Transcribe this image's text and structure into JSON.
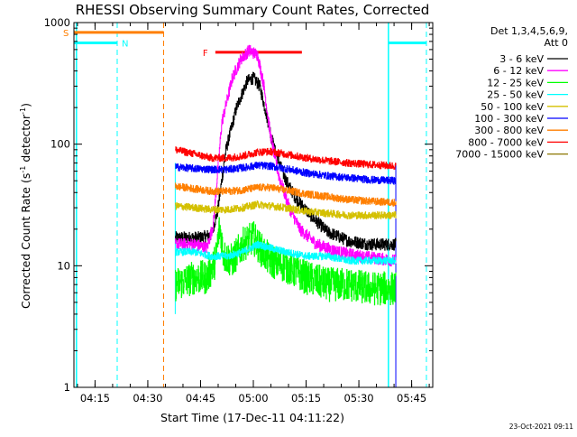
{
  "chart_data": {
    "type": "line",
    "title": "RHESSI Observing Summary Count Rates, Corrected",
    "xlabel": "Start Time (17-Dec-11 04:11:22)",
    "ylabel": "Corrected Count Rate (s",
    "ylabel_sup1": "-1",
    "ylabel_mid": " detector",
    "ylabel_sup2": "-1",
    "ylabel_end": ")",
    "yscale": "log",
    "ylim": [
      1,
      1000
    ],
    "xlim": [
      4.15,
      5.85
    ],
    "x_unit": "hours (UT) on 17-Dec-11",
    "x_ticks": [
      {
        "x": 4.25,
        "label": "04:15"
      },
      {
        "x": 4.5,
        "label": "04:30"
      },
      {
        "x": 4.75,
        "label": "04:45"
      },
      {
        "x": 5.0,
        "label": "05:00"
      },
      {
        "x": 5.25,
        "label": "05:15"
      },
      {
        "x": 5.5,
        "label": "05:30"
      },
      {
        "x": 5.75,
        "label": "05:45"
      }
    ],
    "y_ticks": [
      {
        "y": 1,
        "label": "1"
      },
      {
        "y": 10,
        "label": "10"
      },
      {
        "y": 100,
        "label": "100"
      },
      {
        "y": 1000,
        "label": "1000"
      }
    ],
    "legend_position": "top-right",
    "legend_header": [
      "Det 1,3,4,5,6,9,",
      "Att 0"
    ],
    "data_start": 4.63,
    "data_end": 5.675,
    "series": [
      {
        "name": "3 - 6 keV",
        "color": "#000000",
        "points": [
          [
            4.63,
            17
          ],
          [
            4.75,
            17
          ],
          [
            4.8,
            18
          ],
          [
            4.83,
            28
          ],
          [
            4.87,
            90
          ],
          [
            4.92,
            200
          ],
          [
            4.97,
            330
          ],
          [
            5.0,
            350
          ],
          [
            5.03,
            300
          ],
          [
            5.06,
            180
          ],
          [
            5.1,
            90
          ],
          [
            5.15,
            52
          ],
          [
            5.2,
            36
          ],
          [
            5.28,
            25
          ],
          [
            5.35,
            19
          ],
          [
            5.45,
            16
          ],
          [
            5.55,
            15
          ],
          [
            5.675,
            15
          ]
        ]
      },
      {
        "name": "6 - 12 keV",
        "color": "#ff00ff",
        "points": [
          [
            4.63,
            15
          ],
          [
            4.72,
            15
          ],
          [
            4.78,
            14
          ],
          [
            4.81,
            22
          ],
          [
            4.85,
            150
          ],
          [
            4.9,
            350
          ],
          [
            4.94,
            500
          ],
          [
            4.98,
            590
          ],
          [
            5.02,
            540
          ],
          [
            5.05,
            300
          ],
          [
            5.08,
            120
          ],
          [
            5.12,
            55
          ],
          [
            5.17,
            30
          ],
          [
            5.22,
            20
          ],
          [
            5.3,
            15
          ],
          [
            5.4,
            13
          ],
          [
            5.5,
            12
          ],
          [
            5.675,
            11
          ]
        ]
      },
      {
        "name": "12 - 25 keV",
        "color": "#00ff00",
        "points": [
          [
            4.63,
            7
          ],
          [
            4.72,
            8
          ],
          [
            4.78,
            8
          ],
          [
            4.82,
            11
          ],
          [
            4.84,
            21
          ],
          [
            4.86,
            12
          ],
          [
            4.9,
            11
          ],
          [
            4.95,
            15
          ],
          [
            5.0,
            17
          ],
          [
            5.03,
            14
          ],
          [
            5.08,
            11
          ],
          [
            5.15,
            10
          ],
          [
            5.25,
            8
          ],
          [
            5.35,
            7
          ],
          [
            5.45,
            7
          ],
          [
            5.55,
            6.5
          ],
          [
            5.675,
            6.5
          ]
        ]
      },
      {
        "name": "25 - 50 keV",
        "color": "#00ffff",
        "points": [
          [
            4.63,
            13
          ],
          [
            4.72,
            13
          ],
          [
            4.8,
            12
          ],
          [
            4.88,
            12
          ],
          [
            4.95,
            13
          ],
          [
            5.02,
            15
          ],
          [
            5.08,
            14
          ],
          [
            5.15,
            13
          ],
          [
            5.25,
            12
          ],
          [
            5.35,
            12
          ],
          [
            5.45,
            11
          ],
          [
            5.55,
            11
          ],
          [
            5.675,
            11
          ]
        ]
      },
      {
        "name": "50 - 100 keV",
        "color": "#d4c000",
        "points": [
          [
            4.63,
            31
          ],
          [
            4.72,
            30
          ],
          [
            4.8,
            29
          ],
          [
            4.88,
            29
          ],
          [
            4.95,
            30
          ],
          [
            5.02,
            32
          ],
          [
            5.08,
            31
          ],
          [
            5.15,
            30
          ],
          [
            5.25,
            28
          ],
          [
            5.35,
            27
          ],
          [
            5.45,
            26
          ],
          [
            5.55,
            26
          ],
          [
            5.675,
            26
          ]
        ]
      },
      {
        "name": "100 - 300 keV",
        "color": "#0000ff",
        "points": [
          [
            4.63,
            65
          ],
          [
            4.72,
            63
          ],
          [
            4.8,
            62
          ],
          [
            4.88,
            62
          ],
          [
            4.95,
            64
          ],
          [
            5.02,
            67
          ],
          [
            5.08,
            66
          ],
          [
            5.15,
            63
          ],
          [
            5.25,
            58
          ],
          [
            5.35,
            55
          ],
          [
            5.45,
            53
          ],
          [
            5.55,
            51
          ],
          [
            5.675,
            50
          ]
        ]
      },
      {
        "name": "300 - 800 keV",
        "color": "#ff7f00",
        "points": [
          [
            4.63,
            45
          ],
          [
            4.72,
            43
          ],
          [
            4.8,
            41
          ],
          [
            4.88,
            41
          ],
          [
            4.95,
            42
          ],
          [
            5.02,
            44
          ],
          [
            5.08,
            44
          ],
          [
            5.15,
            42
          ],
          [
            5.25,
            39
          ],
          [
            5.35,
            37
          ],
          [
            5.45,
            35
          ],
          [
            5.55,
            34
          ],
          [
            5.675,
            33
          ]
        ]
      },
      {
        "name": "800 - 7000 keV",
        "color": "#ff0000",
        "points": [
          [
            4.63,
            90
          ],
          [
            4.72,
            83
          ],
          [
            4.8,
            77
          ],
          [
            4.88,
            77
          ],
          [
            4.95,
            80
          ],
          [
            5.02,
            86
          ],
          [
            5.08,
            87
          ],
          [
            5.15,
            83
          ],
          [
            5.25,
            77
          ],
          [
            5.35,
            73
          ],
          [
            5.45,
            70
          ],
          [
            5.55,
            68
          ],
          [
            5.675,
            66
          ]
        ]
      },
      {
        "name": "7000 - 15000 keV",
        "color": "#8b7500",
        "points": []
      }
    ],
    "annotations": {
      "saa": {
        "label": "S",
        "color": "#ff7f00",
        "x_start": 4.15,
        "x_end": 4.575,
        "level": 830,
        "end_line_x": 4.575
      },
      "night": {
        "label": "N",
        "color": "#00ffff",
        "band1": {
          "x_start": 4.15,
          "x_end": 4.355,
          "level": 680
        },
        "band2": {
          "x_start": 5.64,
          "x_end": 5.82,
          "level": 680
        },
        "lines_x": [
          4.162,
          4.355,
          5.64,
          5.82
        ]
      },
      "flare": {
        "label": "F",
        "color": "#ff0000",
        "x_start": 4.82,
        "x_end": 5.23,
        "level": 570
      },
      "lines_legend": {
        "data_start_line_x": 4.63
      }
    }
  },
  "footer": {
    "timestamp": "23-Oct-2021 09:11"
  }
}
